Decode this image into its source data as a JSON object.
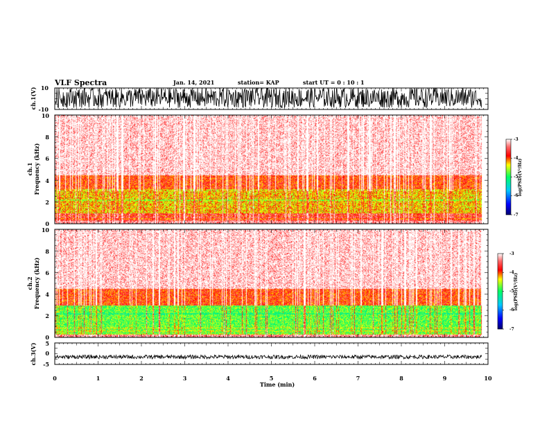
{
  "header": {
    "title": "VLF Spectra",
    "date": "Jan. 14, 2021",
    "station": "station= KAP",
    "start": "start  UT  =   0  : 10 : 1"
  },
  "chart_data": [
    {
      "type": "line",
      "name": "ch1-waveform",
      "ylabel": "ch.1(V)",
      "ylim": [
        -10,
        10
      ],
      "yticks": [
        "10",
        "-10"
      ],
      "xlim": [
        0,
        10
      ],
      "data_end_min": 9.85,
      "envelope": "dense oscillation saturating roughly -8 to +10 V"
    },
    {
      "type": "heatmap",
      "name": "ch1-spectrogram",
      "ylabel_top": "ch.1",
      "ylabel": "Frequency (kHz)",
      "ylim": [
        0,
        10
      ],
      "yticks": [
        "0",
        "2",
        "4",
        "6",
        "8",
        "10"
      ],
      "xlim": [
        0,
        10
      ],
      "data_end_min": 9.85,
      "colorbar": {
        "label": "log(PSD)(V²/Hz)",
        "range": [
          -7,
          -3
        ],
        "ticks": [
          "-3",
          "-4",
          "-5",
          "-6",
          "-7"
        ]
      },
      "profile": [
        {
          "fmin": 0,
          "fmax": 0.3,
          "level": -3.4
        },
        {
          "fmin": 0.3,
          "fmax": 1.0,
          "level": -3.7
        },
        {
          "fmin": 1.0,
          "fmax": 3.2,
          "level": -4.3
        },
        {
          "fmin": 3.2,
          "fmax": 4.5,
          "level": -3.9
        },
        {
          "fmin": 4.5,
          "fmax": 10,
          "level": -3.5
        }
      ]
    },
    {
      "type": "heatmap",
      "name": "ch2-spectrogram",
      "ylabel_top": "ch.2",
      "ylabel": "Frequency (kHz)",
      "ylim": [
        0,
        10
      ],
      "yticks": [
        "0",
        "2",
        "4",
        "6",
        "8",
        "10"
      ],
      "xlim": [
        0,
        10
      ],
      "data_end_min": 9.85,
      "colorbar": {
        "label": "log(PSD)(V²/Hz)",
        "range": [
          -7,
          -3
        ],
        "ticks": [
          "-3",
          "-4",
          "-5",
          "-6",
          "-7"
        ]
      },
      "profile": [
        {
          "fmin": 0,
          "fmax": 0.3,
          "level": -3.4
        },
        {
          "fmin": 0.3,
          "fmax": 1.0,
          "level": -4.6
        },
        {
          "fmin": 1.0,
          "fmax": 3.0,
          "level": -4.8
        },
        {
          "fmin": 3.0,
          "fmax": 4.5,
          "level": -3.9
        },
        {
          "fmin": 4.5,
          "fmax": 10,
          "level": -3.5
        }
      ]
    },
    {
      "type": "line",
      "name": "ch3-waveform",
      "ylabel": "ch.3(V)",
      "ylim": [
        -5,
        5
      ],
      "yticks": [
        "5",
        "0",
        "-5"
      ],
      "xlim": [
        0,
        10
      ],
      "xticks": [
        "0",
        "1",
        "2",
        "3",
        "4",
        "5",
        "6",
        "7",
        "8",
        "9",
        "10"
      ],
      "xlabel": "Time (min)",
      "data_end_min": 9.85,
      "envelope": "narrow band around -1.5 V"
    }
  ],
  "colors": {
    "colormap": [
      "#00006e",
      "#0000ff",
      "#00c8ff",
      "#00ff64",
      "#ffff00",
      "#ff0000",
      "#ffffff"
    ],
    "trace": "#000000"
  }
}
